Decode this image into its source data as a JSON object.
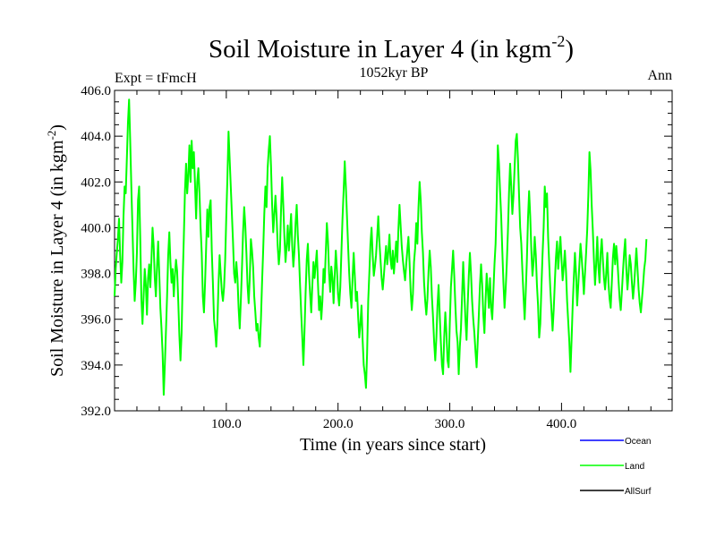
{
  "chart_data": {
    "type": "line",
    "title": "Soil Moisture in Layer 4 (in kgm",
    "title_sup": "-2",
    "title_end": ")",
    "subtitle": "1052kyr BP",
    "left_label": "Expt = tFmcH",
    "right_label": "Ann",
    "xlabel": "Time (in years since start)",
    "ylabel": "Soil Moisture in Layer 4 (in kgm",
    "ylabel_sup": "-2",
    "ylabel_end": ")",
    "xlim": [
      0,
      499
    ],
    "ylim": [
      392,
      406
    ],
    "x_ticks": [
      100,
      200,
      300,
      400
    ],
    "x_tick_labels": [
      "100.0",
      "200.0",
      "300.0",
      "400.0"
    ],
    "y_ticks": [
      392,
      394,
      396,
      398,
      400,
      402,
      404,
      406
    ],
    "y_tick_labels": [
      "392.0",
      "394.0",
      "396.0",
      "398.0",
      "400.0",
      "402.0",
      "404.0",
      "406.0"
    ],
    "legend": [
      {
        "name": "Ocean",
        "color": "#0000ff"
      },
      {
        "name": "Land",
        "color": "#00ff00"
      },
      {
        "name": "AllSurf",
        "color": "#000000"
      }
    ],
    "series": [
      {
        "name": "Land",
        "color": "#00ff00",
        "x_start": 0,
        "x_step": 1,
        "values": [
          397.0,
          398.2,
          398.9,
          399.5,
          400.4,
          398.8,
          397.6,
          398.5,
          400.5,
          401.8,
          401.5,
          403.0,
          404.6,
          405.6,
          403.8,
          401.8,
          400.0,
          398.2,
          396.8,
          397.6,
          398.9,
          401.2,
          401.8,
          399.5,
          396.9,
          395.8,
          397.0,
          398.2,
          397.5,
          396.2,
          397.8,
          398.4,
          397.4,
          398.6,
          400.0,
          399.2,
          397.8,
          397.0,
          398.3,
          399.4,
          398.0,
          396.5,
          395.6,
          394.5,
          392.7,
          394.0,
          395.5,
          397.0,
          398.8,
          399.8,
          398.5,
          397.6,
          398.2,
          397.0,
          397.9,
          398.6,
          398.1,
          396.8,
          395.3,
          394.2,
          395.4,
          397.8,
          399.6,
          401.6,
          402.8,
          401.5,
          402.3,
          403.6,
          402.0,
          403.8,
          402.6,
          403.3,
          401.9,
          400.4,
          402.0,
          402.6,
          401.5,
          400.0,
          398.9,
          397.0,
          396.3,
          397.6,
          399.2,
          400.8,
          399.6,
          400.9,
          401.2,
          399.0,
          397.6,
          396.0,
          395.5,
          394.8,
          395.8,
          397.5,
          398.8,
          398.0,
          397.2,
          396.8,
          397.4,
          398.6,
          400.5,
          402.2,
          404.2,
          403.0,
          401.8,
          400.6,
          399.4,
          398.0,
          397.6,
          398.5,
          397.8,
          396.5,
          395.6,
          396.8,
          398.2,
          399.8,
          400.9,
          400.1,
          398.9,
          397.5,
          396.7,
          397.8,
          399.5,
          399.0,
          398.3,
          397.0,
          396.3,
          395.5,
          395.8,
          395.2,
          394.8,
          396.0,
          397.6,
          399.0,
          400.6,
          401.8,
          400.9,
          402.6,
          403.4,
          404.0,
          402.7,
          401.0,
          399.8,
          400.6,
          401.4,
          400.5,
          399.2,
          398.4,
          399.0,
          400.8,
          402.2,
          401.0,
          399.6,
          398.5,
          399.2,
          400.1,
          399.0,
          399.8,
          400.6,
          399.2,
          398.3,
          399.0,
          400.2,
          401.0,
          399.7,
          398.8,
          397.5,
          396.3,
          395.2,
          394.0,
          395.5,
          397.2,
          398.6,
          399.3,
          398.0,
          397.1,
          396.3,
          397.5,
          398.5,
          397.8,
          398.4,
          399.0,
          397.6,
          396.4,
          397.0,
          396.0,
          396.8,
          398.2,
          397.6,
          398.9,
          400.2,
          399.4,
          398.0,
          397.2,
          398.3,
          397.8,
          396.7,
          397.9,
          399.0,
          398.2,
          397.1,
          396.6,
          397.4,
          398.9,
          400.4,
          401.6,
          402.9,
          401.8,
          400.5,
          399.2,
          398.0,
          397.1,
          396.5,
          397.8,
          398.9,
          397.9,
          396.8,
          397.2,
          396.1,
          395.2,
          395.8,
          396.6,
          395.1,
          394.0,
          393.6,
          393.0,
          394.5,
          396.8,
          398.0,
          399.3,
          400.0,
          398.8,
          397.9,
          398.3,
          398.8,
          399.6,
          400.5,
          399.4,
          398.6,
          397.8,
          397.3,
          397.9,
          398.6,
          399.2,
          398.4,
          398.9,
          399.7,
          398.6,
          398.2,
          399.0,
          398.0,
          398.7,
          399.4,
          398.5,
          399.9,
          401.0,
          400.1,
          399.2,
          398.6,
          398.1,
          397.7,
          398.4,
          399.0,
          399.6,
          398.5,
          397.2,
          396.4,
          397.1,
          398.5,
          399.1,
          400.2,
          399.3,
          400.9,
          402.0,
          401.2,
          399.8,
          398.9,
          397.6,
          396.8,
          396.2,
          396.9,
          398.1,
          399.0,
          398.3,
          397.0,
          396.1,
          395.0,
          394.2,
          395.2,
          396.6,
          397.5,
          396.2,
          395.0,
          394.0,
          393.6,
          395.2,
          396.3,
          395.4,
          394.2,
          393.9,
          395.8,
          397.4,
          398.2,
          399.0,
          397.9,
          396.6,
          395.5,
          395.0,
          393.6,
          394.8,
          395.6,
          397.0,
          398.5,
          397.2,
          396.0,
          395.1,
          396.6,
          397.9,
          398.9,
          398.0,
          396.8,
          396.0,
          395.4,
          394.6,
          393.9,
          395.0,
          396.2,
          397.5,
          398.4,
          397.5,
          396.2,
          395.4,
          396.8,
          398.0,
          397.3,
          396.5,
          397.8,
          396.5,
          396.0,
          397.2,
          398.4,
          399.3,
          401.2,
          403.6,
          402.8,
          401.6,
          400.5,
          399.0,
          397.6,
          396.5,
          397.3,
          398.4,
          399.8,
          401.5,
          402.8,
          401.8,
          400.6,
          401.4,
          402.6,
          403.8,
          404.1,
          403.0,
          401.4,
          400.0,
          399.3,
          398.1,
          397.0,
          396.0,
          397.2,
          398.6,
          400.4,
          401.6,
          400.5,
          399.0,
          397.9,
          398.5,
          399.6,
          398.8,
          397.5,
          396.6,
          395.2,
          395.8,
          397.4,
          398.8,
          400.0,
          401.8,
          400.9,
          401.5,
          399.6,
          398.4,
          397.3,
          396.4,
          395.5,
          396.4,
          397.6,
          398.7,
          399.4,
          398.2,
          398.9,
          399.6,
          398.6,
          397.7,
          398.3,
          399.0,
          398.1,
          396.8,
          395.9,
          395.0,
          393.7,
          395.1,
          396.6,
          397.8,
          398.9,
          398.0,
          396.6,
          397.5,
          398.4,
          399.3,
          398.7,
          398.0,
          397.1,
          398.0,
          398.9,
          399.9,
          401.4,
          403.3,
          402.5,
          401.0,
          399.9,
          398.6,
          397.5,
          398.4,
          399.6,
          398.3,
          397.6,
          398.9,
          399.5,
          398.6,
          397.8,
          397.3,
          398.0,
          398.9,
          397.6,
          396.9,
          396.5,
          397.6,
          398.7,
          399.3,
          398.4,
          399.2,
          398.6,
          397.7,
          396.9,
          396.4,
          397.2,
          398.1,
          398.9,
          399.5,
          398.2,
          397.3,
          398.0,
          398.8,
          398.4,
          397.6,
          396.9,
          397.5,
          398.3,
          399.1,
          398.2,
          397.3,
          396.7,
          396.3,
          396.9,
          397.5,
          398.2,
          398.6,
          399.5
        ]
      }
    ]
  }
}
